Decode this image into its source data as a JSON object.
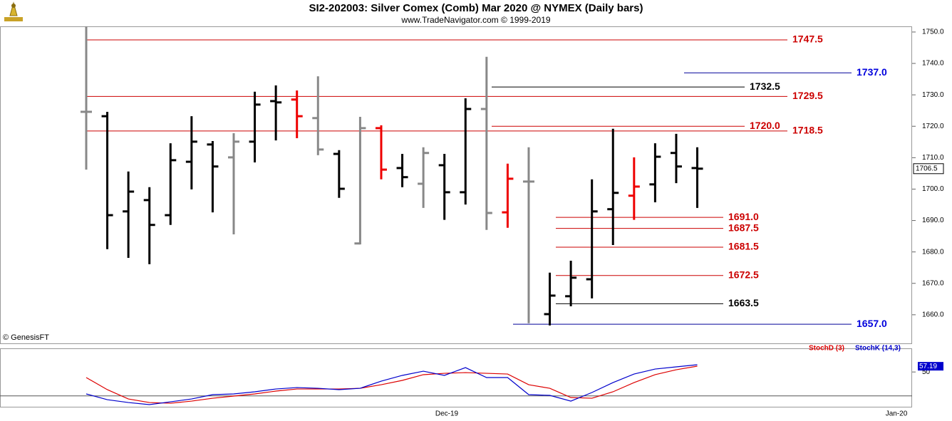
{
  "chart_data": {
    "type": "ohlc",
    "title": "SI2-202003:  Silver Comex (Comb) Mar 2020 @ NYMEX  (Daily bars)",
    "subtitle": "www.TradeNavigator.com © 1999-2019",
    "source": "© GenesisFT",
    "open": [
      1724.6,
      1723.2,
      1692.9,
      1696.5,
      1691.7,
      1708.7,
      1714.2,
      1710.1,
      1715.1,
      1728.0,
      1728.5,
      1722.6,
      1711.2,
      1682.7,
      1719.4,
      1706.7,
      1701.7,
      1707.6,
      1699.0,
      1725.5,
      1692.6,
      1702.4,
      1660.2,
      1665.9,
      1671.3,
      1693.6,
      1697.9,
      1701.5,
      1711.5,
      1706.7
    ],
    "high": [
      1751.8,
      1724.6,
      1705.6,
      1700.6,
      1714.6,
      1723.2,
      1715.3,
      1717.8,
      1731.0,
      1733.0,
      1731.4,
      1735.9,
      1712.4,
      1723.0,
      1720.3,
      1711.2,
      1713.3,
      1711.2,
      1728.9,
      1742.1,
      1708.1,
      1713.3,
      1673.4,
      1677.2,
      1703.1,
      1719.2,
      1710.1,
      1714.6,
      1717.6,
      1713.3
    ],
    "low": [
      1706.2,
      1680.9,
      1678.1,
      1676.1,
      1688.6,
      1699.9,
      1692.6,
      1685.6,
      1708.5,
      1715.5,
      1716.2,
      1710.8,
      1697.2,
      1682.4,
      1703.1,
      1700.6,
      1694.0,
      1690.2,
      1695.1,
      1687.0,
      1687.7,
      1657.3,
      1656.6,
      1662.7,
      1665.2,
      1682.2,
      1690.2,
      1695.8,
      1701.9,
      1694.0
    ],
    "close": [
      1724.6,
      1691.7,
      1699.2,
      1688.6,
      1709.2,
      1715.1,
      1707.2,
      1715.1,
      1726.9,
      1727.6,
      1723.2,
      1712.6,
      1700.1,
      1719.4,
      1706.2,
      1703.8,
      1711.5,
      1699.0,
      1725.5,
      1692.4,
      1703.3,
      1702.4,
      1666.1,
      1671.8,
      1692.9,
      1698.8,
      1700.8,
      1710.3,
      1707.2,
      1706.5
    ],
    "colors": [
      "#888888",
      "#000000",
      "#000000",
      "#000000",
      "#000000",
      "#000000",
      "#000000",
      "#888888",
      "#000000",
      "#000000",
      "#ee0000",
      "#888888",
      "#000000",
      "#888888",
      "#ee0000",
      "#000000",
      "#888888",
      "#000000",
      "#000000",
      "#888888",
      "#ee0000",
      "#888888",
      "#000000",
      "#000000",
      "#000000",
      "#000000",
      "#ee0000",
      "#000000",
      "#000000",
      "#000000"
    ],
    "x_labels": [
      "Dec-19",
      "Jan-20"
    ],
    "ylim": [
      1650.9,
      1751.8
    ],
    "yticks": [
      {
        "value": 1660,
        "label": "1660.0"
      },
      {
        "value": 1670,
        "label": "1670.0"
      },
      {
        "value": 1680,
        "label": "1680.0"
      },
      {
        "value": 1690,
        "label": "1690.0"
      },
      {
        "value": 1700,
        "label": "1700.0"
      },
      {
        "value": 1710,
        "label": "1710.0"
      },
      {
        "value": 1720,
        "label": "1720.0"
      },
      {
        "value": 1730,
        "label": "1730.0"
      },
      {
        "value": 1740,
        "label": "1740.0"
      },
      {
        "value": 1750,
        "label": "1750.0"
      }
    ],
    "last_price": {
      "value": 1706.5,
      "label": "1706.5"
    },
    "levels": [
      {
        "value": 1747.5,
        "label": "1747.5",
        "color": "#cc0000"
      },
      {
        "value": 1737,
        "label": "1737.0",
        "color": "#0000dd"
      },
      {
        "value": 1732.5,
        "label": "1732.5",
        "color": "#000000"
      },
      {
        "value": 1729.5,
        "label": "1729.5",
        "color": "#cc0000"
      },
      {
        "value": 1720,
        "label": "1720.0",
        "color": "#cc0000"
      },
      {
        "value": 1718.5,
        "label": "1718.5",
        "color": "#cc0000"
      },
      {
        "value": 1691,
        "label": "1691.0",
        "color": "#cc0000"
      },
      {
        "value": 1687.5,
        "label": "1687.5",
        "color": "#cc0000"
      },
      {
        "value": 1681.5,
        "label": "1681.5",
        "color": "#cc0000"
      },
      {
        "value": 1672.5,
        "label": "1672.5",
        "color": "#cc0000"
      },
      {
        "value": 1663.5,
        "label": "1663.5",
        "color": "#000000"
      },
      {
        "value": 1657,
        "label": "1657.0",
        "color": "#0000dd"
      }
    ],
    "stoch": {
      "ylim": [
        5.4,
        78.8
      ],
      "yticks": [
        50
      ],
      "hlines": [
        20
      ],
      "last_label": {
        "value": 57.19,
        "label": "57.19"
      },
      "series": [
        {
          "name": "StochD (3)",
          "color": "#dd0000",
          "values": [
            43.0,
            27.8,
            16.1,
            11.6,
            10.7,
            13.4,
            17.0,
            19.7,
            22.4,
            26.0,
            28.6,
            28.6,
            28.6,
            29.5,
            34.0,
            39.4,
            46.6,
            48.3,
            49.2,
            48.3,
            47.4,
            34.0,
            29.5,
            17.9,
            17.0,
            25.1,
            36.7,
            46.6,
            52.8,
            57.3
          ]
        },
        {
          "name": "StochK (14,3)",
          "color": "#0000cc",
          "values": [
            22.4,
            15.2,
            11.6,
            9.0,
            12.5,
            16.1,
            21.5,
            22.4,
            25.1,
            28.6,
            30.4,
            29.5,
            27.8,
            29.5,
            38.5,
            45.7,
            51.0,
            45.7,
            55.5,
            43.0,
            43.0,
            21.5,
            20.6,
            13.4,
            24.2,
            36.7,
            47.4,
            53.7,
            56.4,
            59.1
          ]
        }
      ]
    }
  }
}
